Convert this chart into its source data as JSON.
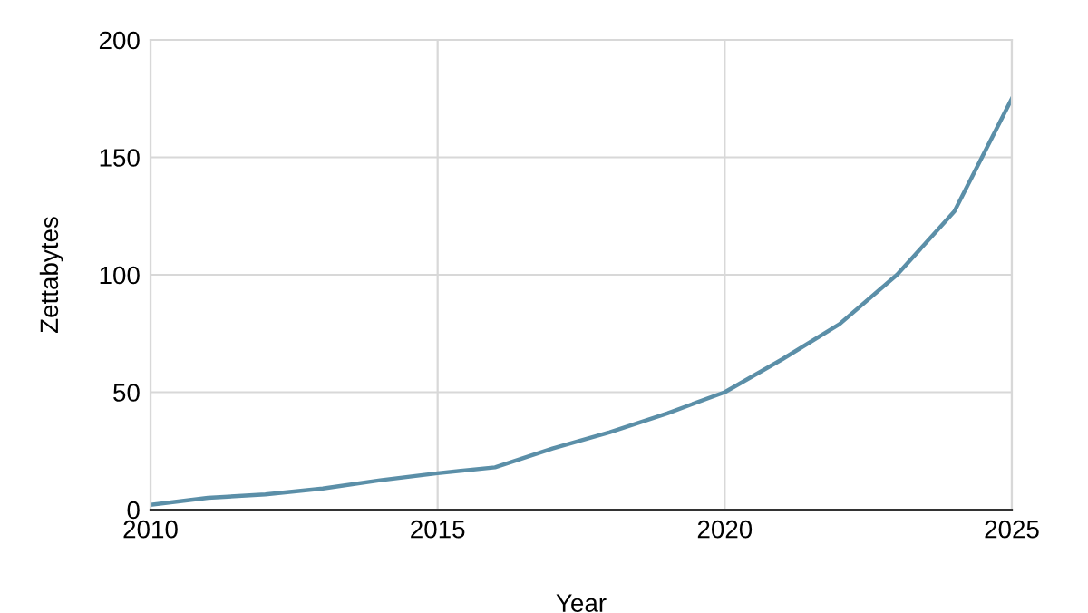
{
  "chart_data": {
    "type": "line",
    "xlabel": "Year",
    "ylabel": "Zettabytes",
    "x": [
      2010,
      2011,
      2012,
      2013,
      2014,
      2015,
      2016,
      2017,
      2018,
      2019,
      2020,
      2021,
      2022,
      2023,
      2024,
      2025
    ],
    "series": [
      {
        "color": "#5b8fa8",
        "values": [
          2,
          5,
          6.5,
          9,
          12.5,
          15.5,
          18,
          26,
          33,
          41,
          50,
          64,
          79,
          100,
          127,
          175
        ]
      }
    ],
    "xlim": [
      2010,
      2025
    ],
    "xticks": [
      2010,
      2015,
      2020,
      2025
    ],
    "ylim": [
      0,
      200
    ],
    "yticks": [
      0,
      50,
      100,
      150,
      200
    ],
    "grid": true,
    "marker": "none",
    "line_style": "solid"
  }
}
